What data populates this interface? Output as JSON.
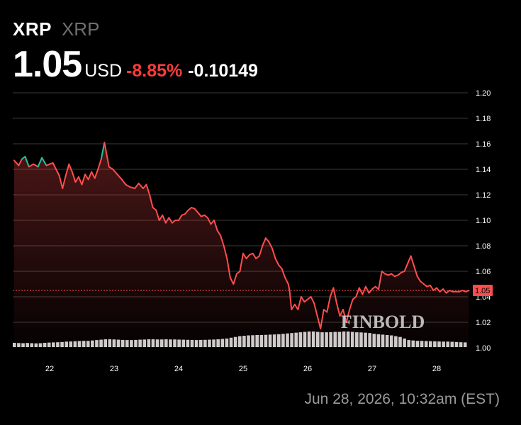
{
  "header": {
    "symbol": "XRP",
    "name": "XRP",
    "price": "1.05",
    "currency": "USD",
    "change_pct": "-8.85%",
    "change_abs": "-0.10149"
  },
  "timestamp": "Jun 28, 2026, 10:32am (EST)",
  "watermark": "FINBOLD",
  "colors": {
    "background": "#000000",
    "down": "#ff4d4d",
    "up": "#22c0a0",
    "grid": "#3a3a3a",
    "volume": "#cfcfcf"
  },
  "chart_data": {
    "type": "line",
    "x_ticks": [
      "22",
      "23",
      "24",
      "25",
      "26",
      "27",
      "28"
    ],
    "y_ticks": [
      "1.00",
      "1.02",
      "1.04",
      "1.06",
      "1.08",
      "1.10",
      "1.12",
      "1.14",
      "1.16",
      "1.18",
      "1.20"
    ],
    "ylim": [
      1.0,
      1.2
    ],
    "xlim": [
      21.45,
      28.5
    ],
    "last_price_label": "1.05",
    "last_price": 1.045,
    "grid": "horizontal",
    "series": [
      {
        "x": [
          21.45,
          21.52,
          21.57,
          21.62,
          21.68,
          21.75,
          21.82,
          21.88,
          21.95,
          22.0,
          22.05,
          22.1,
          22.15,
          22.2,
          22.25,
          22.3,
          22.35,
          22.4,
          22.45,
          22.5,
          22.55,
          22.6,
          22.65,
          22.7,
          22.75,
          22.8,
          22.85,
          22.92,
          22.98,
          23.05,
          23.12,
          23.18,
          23.25,
          23.32,
          23.38,
          23.45,
          23.5,
          23.55,
          23.6,
          23.65,
          23.7,
          23.75,
          23.8,
          23.85,
          23.9,
          23.95,
          24.0,
          24.05,
          24.1,
          24.15,
          24.2,
          24.25,
          24.3,
          24.35,
          24.4,
          24.45,
          24.5,
          24.55,
          24.6,
          24.65,
          24.7,
          24.75,
          24.8,
          24.85,
          24.9,
          24.95,
          25.0,
          25.05,
          25.1,
          25.15,
          25.2,
          25.25,
          25.3,
          25.35,
          25.4,
          25.45,
          25.5,
          25.55,
          25.6,
          25.65,
          25.7,
          25.72,
          25.75,
          25.8,
          25.85,
          25.9,
          25.95,
          26.0,
          26.05,
          26.1,
          26.15,
          26.2,
          26.25,
          26.3,
          26.35,
          26.4,
          26.45,
          26.5,
          26.55,
          26.6,
          26.65,
          26.7,
          26.75,
          26.8,
          26.85,
          26.9,
          26.95,
          27.0,
          27.05,
          27.1,
          27.15,
          27.2,
          27.25,
          27.3,
          27.35,
          27.4,
          27.45,
          27.5,
          27.55,
          27.6,
          27.65,
          27.7,
          27.75,
          27.8,
          27.85,
          27.9,
          27.95,
          28.0,
          28.05,
          28.1,
          28.15,
          28.2,
          28.25,
          28.3,
          28.35,
          28.4,
          28.45,
          28.5
        ],
        "values": [
          1.147,
          1.143,
          1.148,
          1.15,
          1.142,
          1.144,
          1.142,
          1.149,
          1.143,
          1.144,
          1.145,
          1.14,
          1.135,
          1.125,
          1.135,
          1.144,
          1.138,
          1.13,
          1.134,
          1.128,
          1.136,
          1.132,
          1.138,
          1.133,
          1.14,
          1.148,
          1.161,
          1.142,
          1.14,
          1.136,
          1.132,
          1.128,
          1.126,
          1.125,
          1.129,
          1.125,
          1.128,
          1.12,
          1.11,
          1.108,
          1.1,
          1.104,
          1.098,
          1.102,
          1.098,
          1.1,
          1.1,
          1.104,
          1.105,
          1.108,
          1.11,
          1.109,
          1.106,
          1.103,
          1.104,
          1.102,
          1.097,
          1.1,
          1.092,
          1.088,
          1.08,
          1.07,
          1.055,
          1.05,
          1.058,
          1.06,
          1.074,
          1.07,
          1.073,
          1.074,
          1.07,
          1.072,
          1.08,
          1.086,
          1.083,
          1.078,
          1.07,
          1.065,
          1.062,
          1.055,
          1.05,
          1.045,
          1.03,
          1.034,
          1.03,
          1.04,
          1.036,
          1.038,
          1.04,
          1.035,
          1.025,
          1.015,
          1.03,
          1.028,
          1.04,
          1.047,
          1.035,
          1.025,
          1.03,
          1.02,
          1.03,
          1.038,
          1.04,
          1.047,
          1.042,
          1.048,
          1.043,
          1.046,
          1.048,
          1.046,
          1.06,
          1.058,
          1.057,
          1.058,
          1.056,
          1.057,
          1.059,
          1.06,
          1.066,
          1.072,
          1.064,
          1.056,
          1.052,
          1.05,
          1.048,
          1.049,
          1.045,
          1.047,
          1.044,
          1.046,
          1.043,
          1.045,
          1.044,
          1.044,
          1.044,
          1.045,
          1.044,
          1.045
        ]
      }
    ],
    "up_segments": [
      [
        21.57,
        21.68
      ],
      [
        21.85,
        21.95
      ],
      [
        22.78,
        22.88
      ]
    ],
    "volume": [
      0.55,
      0.52,
      0.5,
      0.53,
      0.5,
      0.48,
      0.5,
      0.55,
      0.58,
      0.6,
      0.62,
      0.65,
      0.7,
      0.72,
      0.75,
      0.78,
      0.8,
      0.8,
      0.85,
      0.9,
      0.95,
      1.0,
      1.0,
      0.98,
      0.95,
      0.92,
      0.9,
      0.9,
      0.92,
      0.95,
      0.97,
      1.0,
      1.0,
      0.98,
      0.98,
      1.0,
      0.98,
      0.98,
      0.96,
      0.95,
      0.93,
      0.92,
      0.9,
      0.92,
      0.93,
      0.95,
      0.97,
      1.0,
      1.05,
      1.1,
      1.2,
      1.3,
      1.4,
      1.45,
      1.5,
      1.52,
      1.55,
      1.55,
      1.57,
      1.6,
      1.62,
      1.65,
      1.7,
      1.75,
      1.8,
      1.85,
      1.9,
      1.95,
      2.0,
      2.0,
      1.95,
      1.9,
      1.9,
      1.92,
      1.95,
      1.95,
      2.0,
      2.0,
      1.95,
      1.9,
      1.88,
      1.85,
      1.8,
      1.7,
      1.65,
      1.6,
      1.55,
      1.5,
      1.4,
      1.3,
      1.1,
      0.9,
      0.85,
      0.8,
      0.8,
      0.78,
      0.76,
      0.74,
      0.72,
      0.7,
      0.7,
      0.68,
      0.65,
      0.62,
      0.6
    ]
  }
}
